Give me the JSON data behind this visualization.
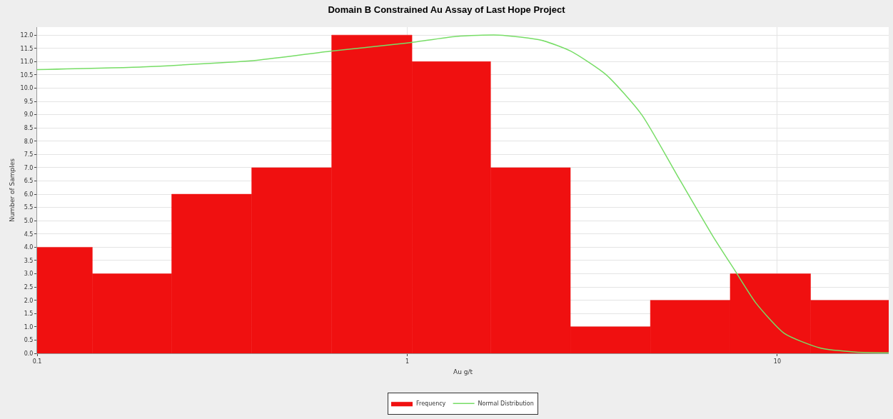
{
  "chart_data": {
    "type": "histogram",
    "title": "Domain B Constrained Au Assay of Last Hope Project",
    "xlabel": "Au g/t",
    "ylabel": "Number of Samples",
    "bins": [
      0.1,
      0.141,
      0.231,
      0.38,
      0.625,
      1.03,
      1.68,
      2.76,
      4.54,
      7.46,
      12.3,
      20
    ],
    "series": [
      {
        "name": "Frequency",
        "color": "#f01010",
        "values": [
          4,
          3,
          6,
          7,
          12,
          11,
          7,
          1,
          2,
          3,
          2
        ]
      },
      {
        "name": "Normal Distribution",
        "type": "line",
        "color": "#77dd66",
        "x": [
          0.1,
          0.193,
          0.392,
          0.625,
          1,
          1.36,
          1.77,
          2.31,
          2.76,
          3.45,
          4.3,
          5.37,
          6.71,
          7.66,
          8.75,
          10.45,
          13.05,
          16.3,
          20
        ],
        "values": [
          10.7,
          10.8,
          11.05,
          11.4,
          11.7,
          11.95,
          12,
          11.8,
          11.4,
          10.5,
          9,
          6.7,
          4.4,
          3.15,
          1.9,
          0.75,
          0.2,
          0.05,
          0.02
        ]
      }
    ],
    "log": "x",
    "xlim": [
      0.1,
      20
    ],
    "xticks": [
      0.1,
      1,
      10
    ],
    "ylim": [
      0,
      12.3
    ],
    "yticks": [
      {
        "value": 0,
        "label": "0.0"
      },
      {
        "value": 0.5,
        "label": "0.5"
      },
      {
        "value": 1,
        "label": "1.0"
      },
      {
        "value": 1.5,
        "label": "1.5"
      },
      {
        "value": 2,
        "label": "2.0"
      },
      {
        "value": 2.5,
        "label": "2.5"
      },
      {
        "value": 3,
        "label": "3.0"
      },
      {
        "value": 3.5,
        "label": "3.5"
      },
      {
        "value": 4,
        "label": "4.0"
      },
      {
        "value": 4.5,
        "label": "4.5"
      },
      {
        "value": 5,
        "label": "5.0"
      },
      {
        "value": 5.5,
        "label": "5.5"
      },
      {
        "value": 6,
        "label": "6.0"
      },
      {
        "value": 6.5,
        "label": "6.5"
      },
      {
        "value": 7,
        "label": "7.0"
      },
      {
        "value": 7.5,
        "label": "7.5"
      },
      {
        "value": 8,
        "label": "8.0"
      },
      {
        "value": 8.5,
        "label": "8.5"
      },
      {
        "value": 9,
        "label": "9.0"
      },
      {
        "value": 9.5,
        "label": "9.5"
      },
      {
        "value": 10,
        "label": "10.0"
      },
      {
        "value": 10.5,
        "label": "10.5"
      },
      {
        "value": 11,
        "label": "11.0"
      },
      {
        "value": 11.5,
        "label": "11.5"
      },
      {
        "value": 12,
        "label": "12.0"
      }
    ],
    "grid": true,
    "legend": "bottom",
    "marker": "none",
    "line_style": "solid"
  }
}
